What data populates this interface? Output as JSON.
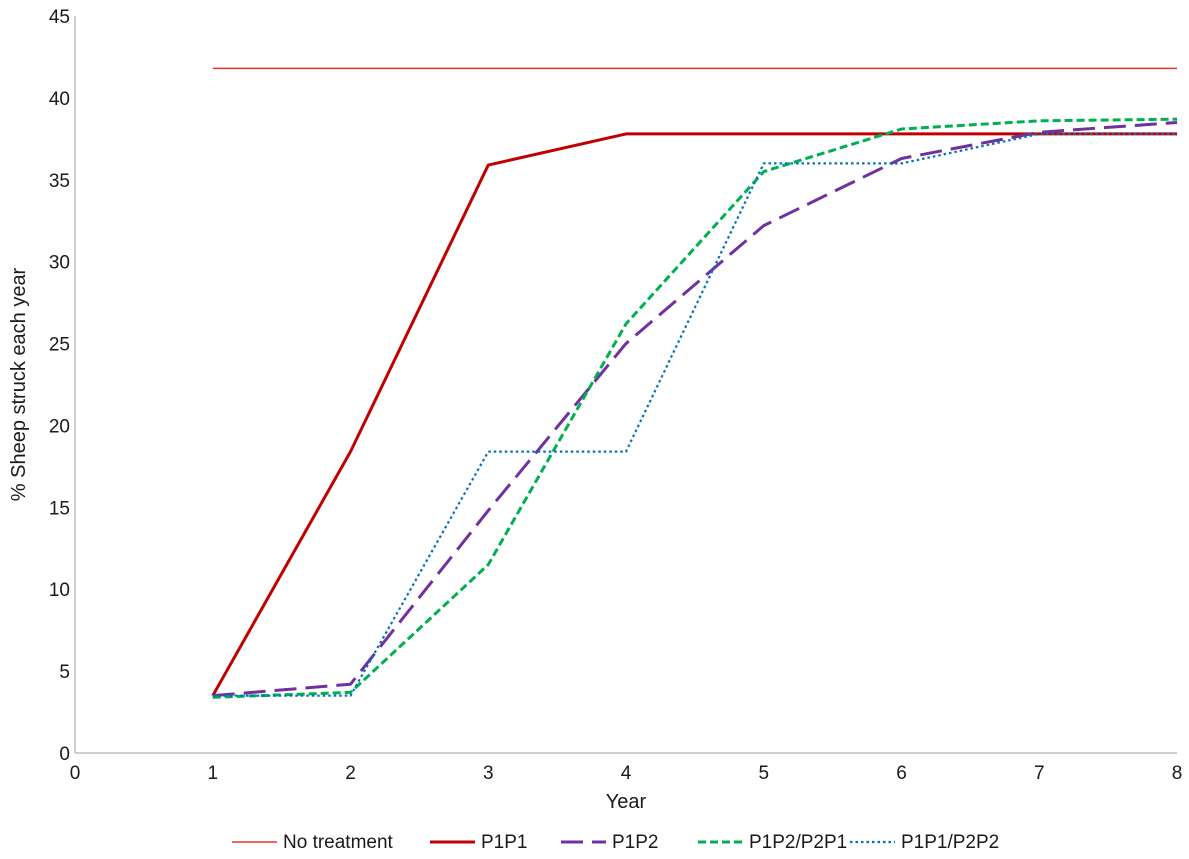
{
  "chart_data": {
    "type": "line",
    "title": "",
    "xlabel": "Year",
    "ylabel": "% Sheep struck each year",
    "xlim": [
      0,
      8
    ],
    "ylim": [
      0,
      45
    ],
    "x_ticks": [
      "0",
      "1",
      "2",
      "3",
      "4",
      "5",
      "6",
      "7",
      "8"
    ],
    "y_ticks": [
      "0",
      "5",
      "10",
      "15",
      "20",
      "25",
      "30",
      "35",
      "40",
      "45"
    ],
    "grid": false,
    "legend_position": "bottom",
    "x": [
      1,
      2,
      3,
      4,
      5,
      6,
      7,
      8
    ],
    "series": [
      {
        "name": "No treatment",
        "color": "#e8332a",
        "style": "solid-thin",
        "values": [
          41.8,
          41.8,
          41.8,
          41.8,
          41.8,
          41.8,
          41.8,
          41.8
        ]
      },
      {
        "name": "P1P1",
        "color": "#c00000",
        "style": "solid-thick",
        "values": [
          3.5,
          18.4,
          35.9,
          37.8,
          37.8,
          37.8,
          37.8,
          37.8
        ]
      },
      {
        "name": "P1P2",
        "color": "#7030a0",
        "style": "long-dash",
        "values": [
          3.5,
          4.2,
          14.8,
          25.0,
          32.2,
          36.3,
          37.9,
          38.5
        ]
      },
      {
        "name": "P1P2/P2P1",
        "color": "#00b050",
        "style": "short-dash",
        "values": [
          3.4,
          3.7,
          11.5,
          26.2,
          35.5,
          38.1,
          38.6,
          38.7
        ]
      },
      {
        "name": "P1P1/P2P2",
        "color": "#0070c0",
        "style": "dotted",
        "x": [
          1,
          2,
          3,
          4,
          5,
          6,
          7,
          8
        ],
        "values": [
          3.5,
          3.5,
          18.4,
          18.4,
          36.0,
          36.0,
          37.8,
          37.8
        ]
      }
    ]
  }
}
